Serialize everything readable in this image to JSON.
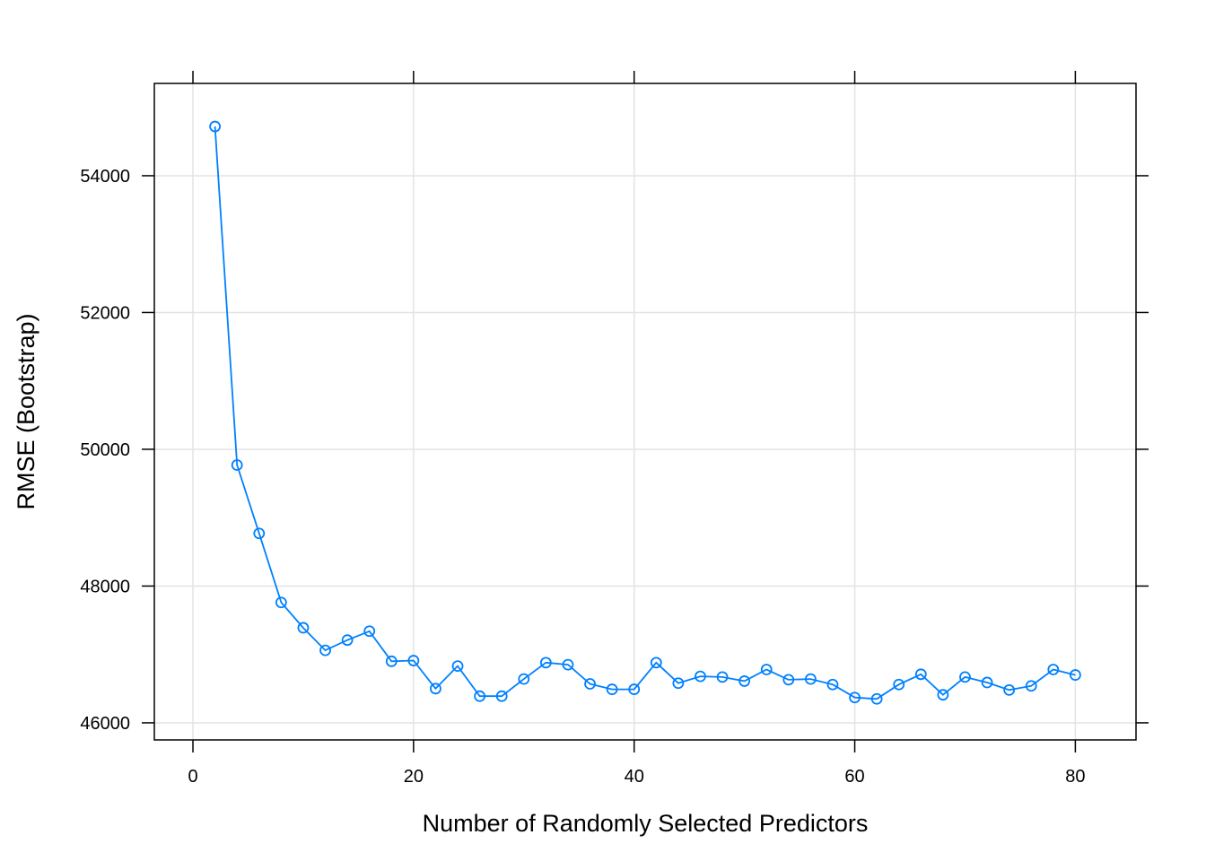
{
  "colors": {
    "series": "#0080ff",
    "grid": "#e3e3e3",
    "frame": "#000000"
  },
  "chart_data": {
    "type": "line",
    "title": "",
    "xlabel": "Number of Randomly Selected Predictors",
    "ylabel": "RMSE (Bootstrap)",
    "xlim": [
      -3.5,
      85.5
    ],
    "ylim": [
      45750,
      55350
    ],
    "xticks": [
      0,
      20,
      40,
      60,
      80
    ],
    "yticks": [
      46000,
      48000,
      50000,
      52000,
      54000
    ],
    "grid": true,
    "markers": "open-circle",
    "series": [
      {
        "x": [
          2,
          4,
          6,
          8,
          10,
          12,
          14,
          16,
          18,
          20,
          22,
          24,
          26,
          28,
          30,
          32,
          34,
          36,
          38,
          40,
          42,
          44,
          46,
          48,
          50,
          52,
          54,
          56,
          58,
          60,
          62,
          64,
          66,
          68,
          70,
          72,
          74,
          76,
          78,
          80
        ],
        "values": [
          54720,
          49770,
          48770,
          47760,
          47390,
          47060,
          47210,
          47340,
          46900,
          46910,
          46500,
          46830,
          46390,
          46390,
          46640,
          46880,
          46850,
          46570,
          46490,
          46490,
          46880,
          46580,
          46680,
          46670,
          46610,
          46780,
          46630,
          46640,
          46560,
          46370,
          46350,
          46560,
          46710,
          46410,
          46670,
          46590,
          46480,
          46540,
          46780,
          46700
        ]
      }
    ]
  }
}
